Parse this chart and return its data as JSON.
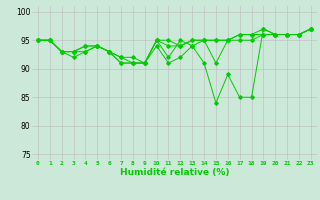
{
  "title": "",
  "xlabel": "Humidité relative (%)",
  "ylabel": "",
  "background_color": "#cce8d8",
  "line_color": "#00cc00",
  "grid_color": "#bbbbbb",
  "xlim": [
    -0.5,
    23.5
  ],
  "ylim": [
    74,
    101
  ],
  "yticks": [
    75,
    80,
    85,
    90,
    95,
    100
  ],
  "xticks": [
    0,
    1,
    2,
    3,
    4,
    5,
    6,
    7,
    8,
    9,
    10,
    11,
    12,
    13,
    14,
    15,
    16,
    17,
    18,
    19,
    20,
    21,
    22,
    23
  ],
  "series": [
    [
      95,
      95,
      93,
      92,
      93,
      94,
      93,
      92,
      92,
      91,
      95,
      92,
      95,
      94,
      91,
      84,
      89,
      85,
      85,
      97,
      96,
      96,
      96,
      97
    ],
    [
      95,
      95,
      93,
      93,
      93,
      94,
      93,
      91,
      91,
      91,
      94,
      91,
      92,
      94,
      95,
      91,
      95,
      95,
      95,
      96,
      96,
      96,
      96,
      97
    ],
    [
      95,
      95,
      93,
      93,
      94,
      94,
      93,
      91,
      91,
      91,
      95,
      94,
      94,
      95,
      95,
      95,
      95,
      96,
      96,
      96,
      96,
      96,
      96,
      97
    ],
    [
      95,
      95,
      93,
      93,
      94,
      94,
      93,
      92,
      91,
      91,
      95,
      95,
      94,
      95,
      95,
      95,
      95,
      96,
      96,
      97,
      96,
      96,
      96,
      97
    ]
  ]
}
